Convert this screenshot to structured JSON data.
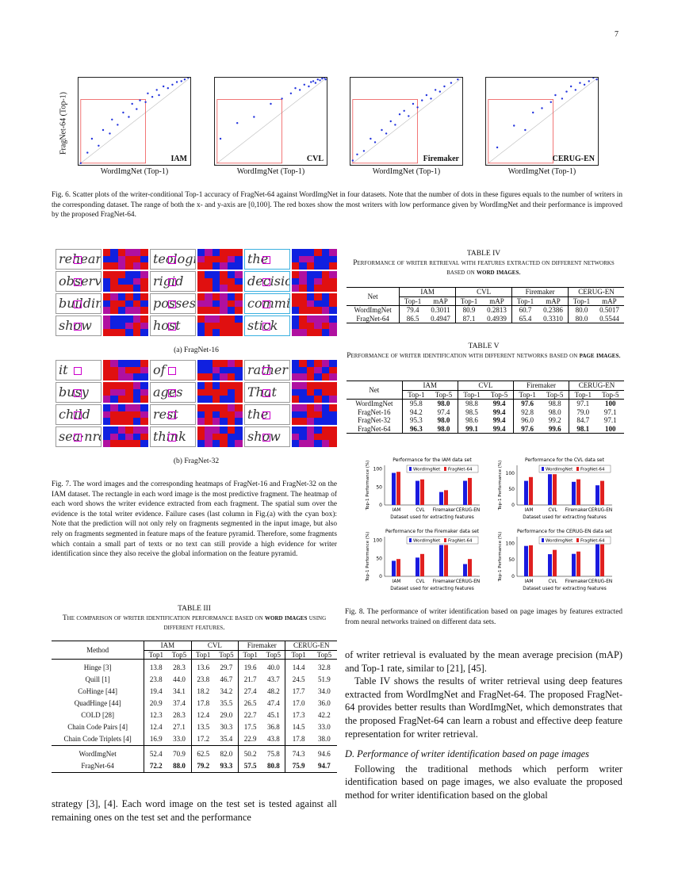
{
  "page_number": "7",
  "fig6": {
    "ylabel": "FragNet-64 (Top-1)",
    "xlabel": "WordImgNet (Top-1)",
    "caption": "Fig. 6.  Scatter plots of the writer-conditional Top-1 accuracy of FragNet-64 against WordImgNet in four datasets. Note that the number of dots in these figures equals to the number of writers in the corresponding dataset. The range of both the x- and y-axis are [0,100]. The red boxes show the most writers with low performance given by WordImgNet and their performance is improved by the proposed FragNet-64."
  },
  "fig7": {
    "a_label": "(a) FragNet-16",
    "b_label": "(b) FragNet-32",
    "a_words": [
      "rehearse",
      "teological",
      "the",
      "observes",
      "rigid",
      "decisions",
      "building",
      "possessive",
      "committed",
      "show",
      "host",
      "stick"
    ],
    "b_words": [
      "it",
      "of",
      "rather",
      "busy",
      "ages",
      "That",
      "child",
      "rest",
      "the",
      "sea·nrd",
      "think",
      "show"
    ],
    "caption": "Fig. 7.  The word images and the corresponding heatmaps of FragNet-16 and FragNet-32 on the IAM dataset. The rectangle in each word image is the most predictive fragment. The heatmap of each word shows the writer evidence extracted from each fragment. The spatial sum over the evidence is the total writer evidence. Failure cases (last column in Fig.(a) with the cyan box): Note that the prediction will not only rely on fragments segmented in the input image, but also rely on fragments segmented in feature maps of the feature pyramid. Therefore, some fragments which contain a small part of texts or no text can still provide a high evidence for writer identification since they also receive the global information on the feature pyramid."
  },
  "table3": {
    "label": "TABLE III",
    "title_pre": "The comparison of writer identification performance based on ",
    "title_bold": "word images",
    "title_post": " using different features.",
    "method_header": "Method",
    "groups": [
      "IAM",
      "CVL",
      "Firemaker",
      "CERUG-EN"
    ],
    "sub": [
      "Top1",
      "Top5"
    ],
    "rows": [
      [
        "Hinge [3]",
        "13.8",
        "28.3",
        "13.6",
        "29.7",
        "19.6",
        "40.0",
        "14.4",
        "32.8"
      ],
      [
        "Quill [1]",
        "23.8",
        "44.0",
        "23.8",
        "46.7",
        "21.7",
        "43.7",
        "24.5",
        "51.9"
      ],
      [
        "CoHinge [44]",
        "19.4",
        "34.1",
        "18.2",
        "34.2",
        "27.4",
        "48.2",
        "17.7",
        "34.0"
      ],
      [
        "QuadHinge [44]",
        "20.9",
        "37.4",
        "17.8",
        "35.5",
        "26.5",
        "47.4",
        "17.0",
        "36.0"
      ],
      [
        "COLD [28]",
        "12.3",
        "28.3",
        "12.4",
        "29.0",
        "22.7",
        "45.1",
        "17.3",
        "42.2"
      ],
      [
        "Chain Code Pairs [4]",
        "12.4",
        "27.1",
        "13.5",
        "30.3",
        "17.5",
        "36.8",
        "14.5",
        "33.0"
      ],
      [
        "Chain Code Triplets [4]",
        "16.9",
        "33.0",
        "17.2",
        "35.4",
        "22.9",
        "43.8",
        "17.8",
        "38.0"
      ],
      [
        "WordImgNet",
        "52.4",
        "70.9",
        "62.5",
        "82.0",
        "50.2",
        "75.8",
        "74.3",
        "94.6"
      ],
      [
        "FragNet-64",
        "72.2",
        "88.0",
        "79.2",
        "93.3",
        "57.5",
        "80.8",
        "75.9",
        "94.7"
      ]
    ],
    "bold_rows": [
      8
    ]
  },
  "table4": {
    "label": "TABLE IV",
    "title_pre": "Performance of writer retrieval with features extracted on different networks based on ",
    "title_bold": "word images",
    "title_post": ".",
    "net_header": "Net",
    "groups": [
      "IAM",
      "CVL",
      "Firemaker",
      "CERUG-EN"
    ],
    "sub": [
      "Top-1",
      "mAP"
    ],
    "rows": [
      [
        "WordImgNet",
        "79.4",
        "0.3011",
        "80.9",
        "0.2813",
        "60.7",
        "0.2386",
        "80.0",
        "0.5017"
      ],
      [
        "FragNet-64",
        "86.5",
        "0.4947",
        "87.1",
        "0.4939",
        "65.4",
        "0.3310",
        "80.0",
        "0.5544"
      ]
    ]
  },
  "table5": {
    "label": "TABLE V",
    "title_pre": "Performance of writer identification with different networks based on ",
    "title_bold": "page images",
    "title_post": ".",
    "net_header": "Net",
    "groups": [
      "IAM",
      "CVL",
      "Firemaker",
      "CERUG-EN"
    ],
    "sub": [
      "Top-1",
      "Top-5"
    ],
    "rows": [
      [
        "WordImgNet",
        "95.8",
        "98.0",
        "98.8",
        "99.4",
        "97.6",
        "98.8",
        "97.1",
        "100"
      ],
      [
        "FragNet-16",
        "94.2",
        "97.4",
        "98.5",
        "99.4",
        "92.8",
        "98.0",
        "79.0",
        "97.1"
      ],
      [
        "FragNet-32",
        "95.3",
        "98.0",
        "98.6",
        "99.4",
        "96.0",
        "99.2",
        "84.7",
        "97.1"
      ],
      [
        "FragNet-64",
        "96.3",
        "98.0",
        "99.1",
        "99.4",
        "97.6",
        "99.6",
        "98.1",
        "100"
      ]
    ],
    "bold_cells": [
      [
        0,
        2
      ],
      [
        0,
        4
      ],
      [
        0,
        5
      ],
      [
        0,
        8
      ],
      [
        1,
        4
      ],
      [
        2,
        2
      ],
      [
        2,
        4
      ],
      [
        3,
        1
      ],
      [
        3,
        2
      ],
      [
        3,
        3
      ],
      [
        3,
        4
      ],
      [
        3,
        5
      ],
      [
        3,
        6
      ],
      [
        3,
        7
      ],
      [
        3,
        8
      ]
    ]
  },
  "fig8": {
    "caption": "Fig. 8.  The performance of writer identification based on page images by features extracted from neural networks trained on different data sets."
  },
  "chart_data": [
    {
      "type": "scatter",
      "panel": "IAM",
      "xlabel": "WordImgNet (Top-1)",
      "ylabel": "FragNet-64 (Top-1)",
      "xlim": [
        0,
        100
      ],
      "ylim": [
        0,
        100
      ],
      "points": [
        [
          2,
          2
        ],
        [
          8,
          14
        ],
        [
          12,
          30
        ],
        [
          18,
          22
        ],
        [
          22,
          40
        ],
        [
          28,
          36
        ],
        [
          30,
          52
        ],
        [
          35,
          46
        ],
        [
          40,
          60
        ],
        [
          45,
          55
        ],
        [
          48,
          70
        ],
        [
          52,
          64
        ],
        [
          55,
          74
        ],
        [
          60,
          72
        ],
        [
          62,
          82
        ],
        [
          66,
          78
        ],
        [
          70,
          86
        ],
        [
          72,
          80
        ],
        [
          76,
          90
        ],
        [
          80,
          88
        ],
        [
          84,
          92
        ],
        [
          88,
          95
        ],
        [
          92,
          96
        ],
        [
          95,
          98
        ],
        [
          98,
          100
        ]
      ]
    },
    {
      "type": "scatter",
      "panel": "CVL",
      "xlabel": "WordImgNet (Top-1)",
      "ylabel": "",
      "xlim": [
        0,
        100
      ],
      "ylim": [
        0,
        100
      ],
      "points": [
        [
          5,
          30
        ],
        [
          20,
          48
        ],
        [
          35,
          55
        ],
        [
          50,
          70
        ],
        [
          60,
          76
        ],
        [
          68,
          82
        ],
        [
          72,
          88
        ],
        [
          76,
          86
        ],
        [
          80,
          92
        ],
        [
          84,
          90
        ],
        [
          86,
          95
        ],
        [
          88,
          96
        ],
        [
          90,
          94
        ],
        [
          92,
          98
        ],
        [
          94,
          97
        ],
        [
          96,
          99
        ],
        [
          98,
          100
        ],
        [
          99,
          98
        ]
      ]
    },
    {
      "type": "scatter",
      "panel": "Firemaker",
      "xlabel": "WordImgNet (Top-1)",
      "ylabel": "",
      "xlim": [
        0,
        100
      ],
      "ylim": [
        0,
        100
      ],
      "points": [
        [
          2,
          5
        ],
        [
          6,
          12
        ],
        [
          12,
          16
        ],
        [
          18,
          30
        ],
        [
          22,
          26
        ],
        [
          28,
          40
        ],
        [
          32,
          36
        ],
        [
          36,
          50
        ],
        [
          40,
          46
        ],
        [
          44,
          58
        ],
        [
          48,
          62
        ],
        [
          52,
          56
        ],
        [
          56,
          70
        ],
        [
          60,
          66
        ],
        [
          64,
          74
        ],
        [
          68,
          80
        ],
        [
          72,
          76
        ],
        [
          76,
          86
        ],
        [
          80,
          84
        ],
        [
          84,
          90
        ],
        [
          90,
          94
        ],
        [
          96,
          98
        ]
      ]
    },
    {
      "type": "scatter",
      "panel": "CERUG-EN",
      "xlabel": "WordImgNet (Top-1)",
      "ylabel": "",
      "xlim": [
        0,
        100
      ],
      "ylim": [
        0,
        100
      ],
      "points": [
        [
          10,
          20
        ],
        [
          25,
          45
        ],
        [
          35,
          40
        ],
        [
          42,
          60
        ],
        [
          50,
          65
        ],
        [
          58,
          72
        ],
        [
          62,
          80
        ],
        [
          68,
          76
        ],
        [
          72,
          84
        ],
        [
          76,
          90
        ],
        [
          80,
          86
        ],
        [
          84,
          94
        ],
        [
          88,
          92
        ],
        [
          92,
          96
        ],
        [
          96,
          100
        ],
        [
          99,
          98
        ]
      ]
    },
    {
      "type": "bar",
      "title": "Performance for the IAM data set",
      "xlabel": "Dataset used for extracting features",
      "ylabel": "Top-1 Performance (%)",
      "categories": [
        "IAM",
        "CVL",
        "Firemaker",
        "CERUG-EN"
      ],
      "ylim": [
        0,
        110
      ],
      "yticks": [
        0,
        50,
        100
      ],
      "legend": "top-right",
      "series": [
        {
          "name": "WordImgNet",
          "color": "#1a1adf",
          "values": [
            89,
            67,
            36,
            67
          ]
        },
        {
          "name": "FragNet-64",
          "color": "#e02020",
          "values": [
            92,
            71,
            41,
            75
          ]
        }
      ]
    },
    {
      "type": "bar",
      "title": "Performance for the CVL data set",
      "xlabel": "Dataset used for extracting features",
      "ylabel": "Top-1 Performance (%)",
      "categories": [
        "IAM",
        "CVL",
        "Firemaker",
        "CERUG-EN"
      ],
      "ylim": [
        0,
        125
      ],
      "yticks": [
        0,
        50,
        100
      ],
      "legend": "top-right",
      "series": [
        {
          "name": "WordImgNet",
          "color": "#1a1adf",
          "values": [
            76,
            97,
            73,
            62
          ]
        },
        {
          "name": "FragNet-64",
          "color": "#e02020",
          "values": [
            88,
            97,
            81,
            76
          ]
        }
      ]
    },
    {
      "type": "bar",
      "title": "Performance for the Firemaker data set",
      "xlabel": "Dataset used for extracting features",
      "ylabel": "Top-1 Performance (%)",
      "categories": [
        "IAM",
        "CVL",
        "Firemaker",
        "CERUG-EN"
      ],
      "ylim": [
        0,
        110
      ],
      "yticks": [
        0,
        50,
        100
      ],
      "legend": "top-right",
      "series": [
        {
          "name": "WordImgNet",
          "color": "#1a1adf",
          "values": [
            43,
            52,
            87,
            34
          ]
        },
        {
          "name": "FragNet-64",
          "color": "#e02020",
          "values": [
            48,
            62,
            87,
            48
          ]
        }
      ]
    },
    {
      "type": "bar",
      "title": "Performance for the CERUG-EN data set",
      "xlabel": "Dataset used for extracting features",
      "ylabel": "Top-1 Performance (%)",
      "categories": [
        "IAM",
        "CVL",
        "Firemaker",
        "CERUG-EN"
      ],
      "ylim": [
        0,
        120
      ],
      "yticks": [
        0,
        50,
        100
      ],
      "legend": "top-right",
      "series": [
        {
          "name": "WordImgNet",
          "color": "#1a1adf",
          "values": [
            92,
            67,
            68,
            97
          ]
        },
        {
          "name": "FragNet-64",
          "color": "#e02020",
          "values": [
            94,
            80,
            75,
            97
          ]
        }
      ]
    }
  ],
  "left_text": "strategy [3], [4]. Each word image on the test set is tested against all remaining ones on the test set and the performance",
  "right_text": {
    "p1": "of writer retrieval is evaluated by the mean average precision (mAP) and Top-1 rate, similar to [21], [45].",
    "p2": "Table IV shows the results of writer retrieval using deep features extracted from WordImgNet and FragNet-64. The proposed FragNet-64 provides better results than WordImgNet, which demonstrates that the proposed FragNet-64 can learn a robust and effective deep feature representation for writer retrieval.",
    "heading": "D.  Performance of writer identification based on page images",
    "p3": "Following the traditional methods which perform writer identification based on page images, we also evaluate the proposed method for writer identification based on the global"
  }
}
